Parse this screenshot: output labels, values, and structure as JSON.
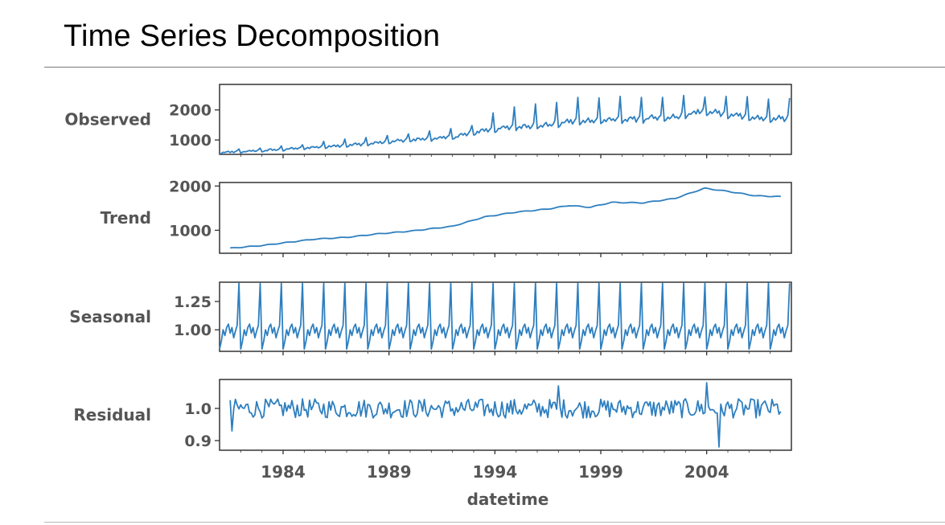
{
  "page": {
    "title": "Time Series Decomposition"
  },
  "colors": {
    "line": "#2e7fbf",
    "frame": "#333333",
    "text": "#555555"
  },
  "chart_data": {
    "type": "line",
    "xlabel": "datetime",
    "x_range": [
      "1981-01",
      "2007-12"
    ],
    "x_ticks": [
      "1984",
      "1989",
      "1994",
      "1999",
      "2004"
    ],
    "x_ticks_fraction_of_year": [
      1984.0,
      1989.0,
      1994.0,
      1999.0,
      2004.0
    ],
    "frequency": "monthly",
    "panels": [
      {
        "name": "Observed",
        "ylabel": "Observed",
        "ylim": [
          520,
          2850
        ],
        "yticks": [
          1000,
          2000
        ],
        "ytick_labels": [
          "1000",
          "2000"
        ],
        "series": {
          "trend": [
            [
              1981.0,
              580
            ],
            [
              1983.0,
              650
            ],
            [
              1985.5,
              760
            ],
            [
              1988.0,
              880
            ],
            [
              1990.0,
              1010
            ],
            [
              1992.0,
              1100
            ],
            [
              1993.5,
              1330
            ],
            [
              1995.0,
              1450
            ],
            [
              1996.5,
              1500
            ],
            [
              1997.5,
              1620
            ],
            [
              1999.5,
              1680
            ],
            [
              2001.0,
              1720
            ],
            [
              2002.5,
              1760
            ],
            [
              2003.7,
              1960
            ],
            [
              2005.0,
              1880
            ],
            [
              2006.5,
              1720
            ],
            [
              2008.0,
              1720
            ]
          ],
          "december_peaks": [
            700,
            730,
            800,
            840,
            950,
            1030,
            1080,
            1150,
            1200,
            1300,
            1380,
            1480,
            1900,
            2100,
            2200,
            2250,
            2420,
            2400,
            2450,
            2420,
            2420,
            2480,
            2430,
            2450,
            2440,
            2360,
            2400
          ]
        }
      },
      {
        "name": "Trend",
        "ylabel": "Trend",
        "ylim": [
          480,
          2080
        ],
        "yticks": [
          1000,
          2000
        ],
        "ytick_labels": [
          "1000",
          "2000"
        ],
        "series": {
          "trend": [
            [
              1981.5,
              595
            ],
            [
              1983.0,
              655
            ],
            [
              1985.5,
              800
            ],
            [
              1987.0,
              840
            ],
            [
              1988.5,
              920
            ],
            [
              1990.0,
              980
            ],
            [
              1992.0,
              1090
            ],
            [
              1993.5,
              1300
            ],
            [
              1995.0,
              1410
            ],
            [
              1996.5,
              1480
            ],
            [
              1997.5,
              1560
            ],
            [
              1998.5,
              1520
            ],
            [
              1999.5,
              1630
            ],
            [
              2001.0,
              1620
            ],
            [
              2002.5,
              1720
            ],
            [
              2003.9,
              1950
            ],
            [
              2005.0,
              1880
            ],
            [
              2006.3,
              1780
            ],
            [
              2007.5,
              1760
            ]
          ]
        }
      },
      {
        "name": "Seasonal",
        "ylabel": "Seasonal",
        "ylim": [
          0.81,
          1.42
        ],
        "yticks": [
          1.0,
          1.25
        ],
        "ytick_labels": [
          "1.00",
          "1.25"
        ],
        "series": {
          "monthly_pattern": [
            0.83,
            0.9,
            1.0,
            0.95,
            1.02,
            1.05,
            0.97,
            1.02,
            0.93,
            0.99,
            1.04,
            1.41
          ]
        }
      },
      {
        "name": "Residual",
        "ylabel": "Residual",
        "ylim": [
          0.87,
          1.09
        ],
        "yticks": [
          0.9,
          1.0
        ],
        "ytick_labels": [
          "0.9",
          "1.0"
        ],
        "series": {
          "residual_summary": {
            "center": 1.0,
            "min": 0.88,
            "max": 1.08
          }
        }
      }
    ]
  }
}
